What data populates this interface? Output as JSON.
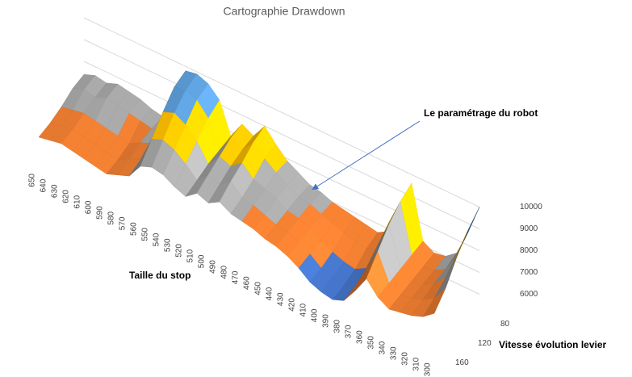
{
  "chart_data": {
    "type": "surface",
    "title": "Cartographie Drawdown",
    "x_label": "Taille du stop",
    "depth_label": "Vitesse évolution levier",
    "annotation": "Le paramétrage du robot",
    "categories": [
      650,
      640,
      630,
      620,
      610,
      600,
      590,
      580,
      570,
      560,
      550,
      540,
      530,
      520,
      510,
      500,
      490,
      480,
      470,
      460,
      450,
      440,
      430,
      420,
      410,
      400,
      390,
      380,
      370,
      360,
      350,
      340,
      330,
      320,
      310,
      300
    ],
    "depth_categories": [
      "160",
      null,
      "120",
      null,
      "80"
    ],
    "zlim": [
      5000,
      10000
    ],
    "zticks": [
      6000,
      7000,
      8000,
      9000,
      10000
    ],
    "band_colors": [
      "#4472c4",
      "#ed7d31",
      "#a5a5a5",
      "#ffc000",
      "#5b9bd5"
    ],
    "rows": [
      [
        6300,
        6400,
        6500,
        6400,
        6300,
        6200,
        6100,
        6300,
        6500,
        7200,
        7400,
        7300,
        7000,
        6800,
        7200,
        7000,
        7300,
        7000,
        6900,
        6800,
        6600,
        6500,
        6300,
        6000,
        5600,
        5400,
        5300,
        5500,
        6200,
        7000,
        6400,
        6100,
        6200,
        6300,
        6500,
        6900
      ],
      [
        6500,
        6600,
        6700,
        6600,
        6500,
        6400,
        6300,
        6600,
        6800,
        8000,
        8200,
        8000,
        7600,
        7100,
        7600,
        7400,
        7800,
        7300,
        7200,
        7000,
        6800,
        6700,
        6500,
        6200,
        5800,
        5600,
        5500,
        5700,
        6800,
        7800,
        6600,
        6300,
        6400,
        6600,
        6900,
        7600
      ],
      [
        6800,
        6900,
        7000,
        6900,
        6800,
        6700,
        6600,
        6900,
        7100,
        8800,
        9000,
        8700,
        8200,
        7400,
        8000,
        7800,
        8200,
        7700,
        7500,
        7300,
        7000,
        6900,
        6700,
        6400,
        6100,
        5900,
        5800,
        6100,
        7400,
        8600,
        6800,
        6500,
        6600,
        6900,
        7400,
        8600
      ],
      [
        7200,
        7400,
        7300,
        7500,
        7400,
        7300,
        7200,
        7100,
        7300,
        9500,
        9600,
        9400,
        8800,
        7600,
        8400,
        8100,
        8700,
        8200,
        7800,
        7500,
        7200,
        7100,
        6900,
        6700,
        6500,
        6400,
        6300,
        6500,
        8000,
        9200,
        7000,
        6700,
        6800,
        7100,
        8000,
        9400
      ],
      [
        7400,
        7600,
        7500,
        7700,
        7600,
        7500,
        7300,
        7200,
        7400,
        9800,
        9900,
        9700,
        9200,
        7800,
        8600,
        8300,
        9000,
        8400,
        7900,
        7600,
        7300,
        7200,
        7000,
        6900,
        6800,
        6700,
        6600,
        6900,
        8500,
        9600,
        7200,
        6900,
        7000,
        7400,
        8600,
        10000
      ]
    ],
    "grid": true
  }
}
